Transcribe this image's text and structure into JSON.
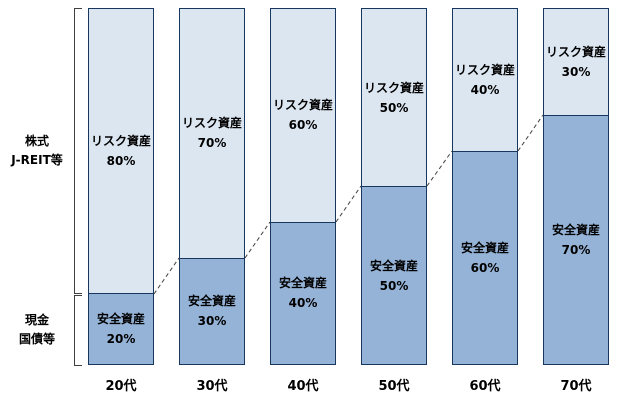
{
  "chart_data": {
    "type": "bar",
    "stacked": true,
    "title": "",
    "xlabel": "",
    "ylabel": "",
    "ylim": [
      0,
      100
    ],
    "grid": false,
    "legend_position": "none",
    "categories": [
      "20代",
      "30代",
      "40代",
      "50代",
      "60代",
      "70代"
    ],
    "series": [
      {
        "name": "リスク資産",
        "values": [
          80,
          70,
          60,
          50,
          40,
          30
        ],
        "color": "#dce6f1",
        "position": "top"
      },
      {
        "name": "安全資産",
        "values": [
          20,
          30,
          40,
          50,
          60,
          70
        ],
        "color": "#95b3d7",
        "position": "bottom"
      }
    ],
    "value_suffix": "%",
    "bar_border_color": "#17375e",
    "connector_style": "dashed",
    "left_labels": {
      "risk_line1": "株式",
      "risk_line2": "J-REIT等",
      "safe_line1": "現金",
      "safe_line2": "国債等"
    }
  }
}
